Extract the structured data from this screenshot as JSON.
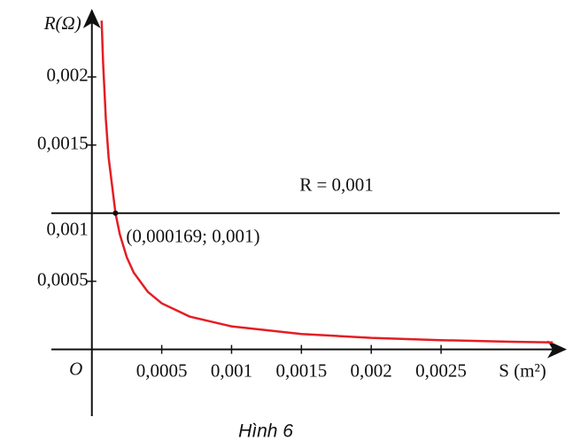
{
  "chart_data": {
    "type": "line",
    "x_label": "S (m²)",
    "y_label": "R(Ω)",
    "origin_label": "O",
    "caption": "Hình 6",
    "x": [
      7e-05,
      8e-05,
      0.0001,
      0.00012,
      0.000169,
      0.0002,
      0.00025,
      0.0003,
      0.0004,
      0.0005,
      0.0007,
      0.001,
      0.0015,
      0.002,
      0.0025,
      0.003,
      0.0033
    ],
    "series": [
      {
        "color": "#e31e24",
        "values": [
          0.002414,
          0.002113,
          0.00169,
          0.001408,
          0.001,
          0.000845,
          0.000676,
          0.000563,
          0.000423,
          0.000338,
          0.000241,
          0.000169,
          0.000113,
          8.45e-05,
          6.76e-05,
          5.63e-05,
          5.12e-05
        ]
      }
    ],
    "hline": {
      "value": 0.001,
      "label": "R = 0,001"
    },
    "point": {
      "x": 0.000169,
      "y": 0.001,
      "label": "(0,000169; 0,001)"
    },
    "xlim": [
      -0.00029,
      0.0034
    ],
    "ylim": [
      -0.00049,
      0.0025
    ],
    "xticks": [
      {
        "value": 0.0005,
        "label": "0,0005"
      },
      {
        "value": 0.001,
        "label": "0,001"
      },
      {
        "value": 0.0015,
        "label": "0,0015"
      },
      {
        "value": 0.002,
        "label": "0,002"
      },
      {
        "value": 0.0025,
        "label": "0,0025"
      }
    ],
    "yticks": [
      {
        "value": 0.0005,
        "label": "0,0005"
      },
      {
        "value": 0.001,
        "label": "0,001"
      },
      {
        "value": 0.0015,
        "label": "0,0015"
      },
      {
        "value": 0.002,
        "label": "0,002"
      }
    ]
  }
}
